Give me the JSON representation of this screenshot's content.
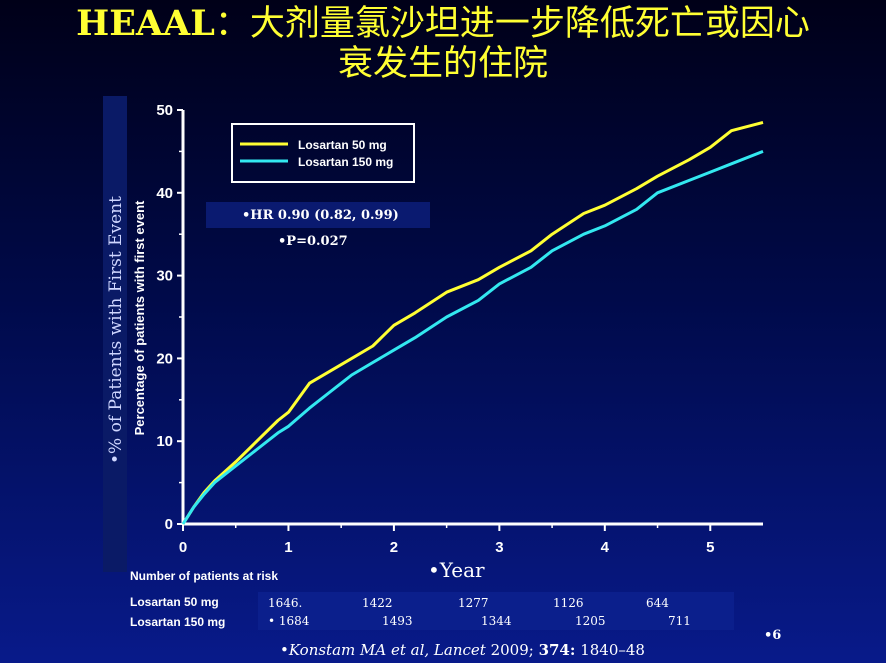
{
  "slide": {
    "title_bold": "HEAAL",
    "title_rest_line1": "：大剂量氯沙坦进一步降低死亡或因心",
    "title_line2": "衰发生的住院",
    "ylabel_outer": "•% of Patients with First Event",
    "xlabel": "•Year",
    "hr_text": "•HR 0.90 (0.82, 0.99)",
    "p_text": "•P=0.027",
    "risk_title": "Number of patients at risk",
    "risk_rows": [
      {
        "name": "Losartan 50 mg",
        "values": [
          "1646.",
          "1422",
          "1277",
          "1126",
          "644"
        ]
      },
      {
        "name": "Losartan 150 mg",
        "values": [
          "•  1684",
          "1493",
          "1344",
          "1205",
          "711"
        ]
      }
    ],
    "citation_prefix": "•",
    "citation_authors": "Konstam MA et al, Lancet",
    "citation_year": " 2009; ",
    "citation_volume": "374:",
    "citation_pages": " 1840–48",
    "page_number": "•6"
  },
  "chart_data": {
    "type": "line",
    "ylabel": "Percentage of patients with first event",
    "xlim": [
      0,
      5.5
    ],
    "ylim": [
      0,
      50
    ],
    "xticks": [
      "0",
      "1",
      "2",
      "3",
      "4",
      "5"
    ],
    "yticks": [
      "0",
      "10",
      "20",
      "30",
      "40",
      "50"
    ],
    "legend_position": "top-left",
    "grid": false,
    "series": [
      {
        "name": "Losartan 50 mg",
        "color": "#ffff33",
        "x": [
          0,
          0.1,
          0.2,
          0.3,
          0.5,
          0.7,
          0.9,
          1.0,
          1.2,
          1.4,
          1.6,
          1.8,
          2.0,
          2.2,
          2.5,
          2.8,
          3.0,
          3.3,
          3.5,
          3.8,
          4.0,
          4.3,
          4.5,
          4.8,
          5.0,
          5.2,
          5.5
        ],
        "y": [
          0,
          2.0,
          3.8,
          5.2,
          7.5,
          10.0,
          12.5,
          13.5,
          17.0,
          18.5,
          20.0,
          21.5,
          24.0,
          25.5,
          28.0,
          29.5,
          31.0,
          33.0,
          35.0,
          37.5,
          38.5,
          40.5,
          42.0,
          44.0,
          45.5,
          47.5,
          48.5
        ]
      },
      {
        "name": "Losartan 150 mg",
        "color": "#33e8f0",
        "x": [
          0,
          0.1,
          0.2,
          0.3,
          0.5,
          0.7,
          0.9,
          1.0,
          1.2,
          1.4,
          1.6,
          1.8,
          2.0,
          2.2,
          2.5,
          2.8,
          3.0,
          3.3,
          3.5,
          3.8,
          4.0,
          4.3,
          4.5,
          4.8,
          5.0,
          5.2,
          5.5
        ],
        "y": [
          0,
          2.0,
          3.6,
          5.0,
          7.0,
          9.0,
          11.0,
          11.8,
          14.0,
          16.0,
          18.0,
          19.5,
          21.0,
          22.5,
          25.0,
          27.0,
          29.0,
          31.0,
          33.0,
          35.0,
          36.0,
          38.0,
          40.0,
          41.5,
          42.5,
          43.5,
          45.0
        ]
      }
    ]
  }
}
